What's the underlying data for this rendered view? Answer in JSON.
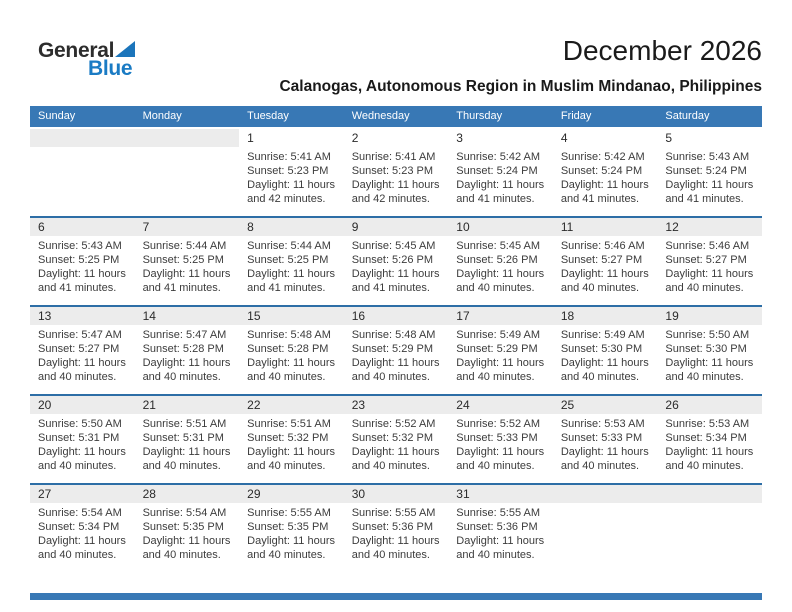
{
  "logo": {
    "word1": "General",
    "word2": "Blue",
    "word1_color": "#2d2d2d",
    "word2_color": "#1a7bc4",
    "triangle_icon": "blue-triangle",
    "triangle_color": "#1b75bb"
  },
  "header": {
    "title": "December 2026",
    "subtitle": "Calanogas, Autonomous Region in Muslim Mindanao, Philippines"
  },
  "colors": {
    "weekday_header_bg": "#3878b5",
    "weekday_header_text": "#ffffff",
    "week_divider": "#2d6ea6",
    "number_band": "#ececec",
    "detail_text": "#3c3c3c",
    "footer_bar": "#3878b5"
  },
  "calendar": {
    "day_headers": [
      "Sunday",
      "Monday",
      "Tuesday",
      "Wednesday",
      "Thursday",
      "Friday",
      "Saturday"
    ],
    "weeks": [
      {
        "days": [
          null,
          null,
          {
            "date": "1",
            "sunrise": "Sunrise: 5:41 AM",
            "sunset": "Sunset: 5:23 PM",
            "daylight_line1": "Daylight: 11 hours",
            "daylight_line2": "and 42 minutes."
          },
          {
            "date": "2",
            "sunrise": "Sunrise: 5:41 AM",
            "sunset": "Sunset: 5:23 PM",
            "daylight_line1": "Daylight: 11 hours",
            "daylight_line2": "and 42 minutes."
          },
          {
            "date": "3",
            "sunrise": "Sunrise: 5:42 AM",
            "sunset": "Sunset: 5:24 PM",
            "daylight_line1": "Daylight: 11 hours",
            "daylight_line2": "and 41 minutes."
          },
          {
            "date": "4",
            "sunrise": "Sunrise: 5:42 AM",
            "sunset": "Sunset: 5:24 PM",
            "daylight_line1": "Daylight: 11 hours",
            "daylight_line2": "and 41 minutes."
          },
          {
            "date": "5",
            "sunrise": "Sunrise: 5:43 AM",
            "sunset": "Sunset: 5:24 PM",
            "daylight_line1": "Daylight: 11 hours",
            "daylight_line2": "and 41 minutes."
          }
        ]
      },
      {
        "days": [
          {
            "date": "6",
            "sunrise": "Sunrise: 5:43 AM",
            "sunset": "Sunset: 5:25 PM",
            "daylight_line1": "Daylight: 11 hours",
            "daylight_line2": "and 41 minutes."
          },
          {
            "date": "7",
            "sunrise": "Sunrise: 5:44 AM",
            "sunset": "Sunset: 5:25 PM",
            "daylight_line1": "Daylight: 11 hours",
            "daylight_line2": "and 41 minutes."
          },
          {
            "date": "8",
            "sunrise": "Sunrise: 5:44 AM",
            "sunset": "Sunset: 5:25 PM",
            "daylight_line1": "Daylight: 11 hours",
            "daylight_line2": "and 41 minutes."
          },
          {
            "date": "9",
            "sunrise": "Sunrise: 5:45 AM",
            "sunset": "Sunset: 5:26 PM",
            "daylight_line1": "Daylight: 11 hours",
            "daylight_line2": "and 41 minutes."
          },
          {
            "date": "10",
            "sunrise": "Sunrise: 5:45 AM",
            "sunset": "Sunset: 5:26 PM",
            "daylight_line1": "Daylight: 11 hours",
            "daylight_line2": "and 40 minutes."
          },
          {
            "date": "11",
            "sunrise": "Sunrise: 5:46 AM",
            "sunset": "Sunset: 5:27 PM",
            "daylight_line1": "Daylight: 11 hours",
            "daylight_line2": "and 40 minutes."
          },
          {
            "date": "12",
            "sunrise": "Sunrise: 5:46 AM",
            "sunset": "Sunset: 5:27 PM",
            "daylight_line1": "Daylight: 11 hours",
            "daylight_line2": "and 40 minutes."
          }
        ]
      },
      {
        "days": [
          {
            "date": "13",
            "sunrise": "Sunrise: 5:47 AM",
            "sunset": "Sunset: 5:27 PM",
            "daylight_line1": "Daylight: 11 hours",
            "daylight_line2": "and 40 minutes."
          },
          {
            "date": "14",
            "sunrise": "Sunrise: 5:47 AM",
            "sunset": "Sunset: 5:28 PM",
            "daylight_line1": "Daylight: 11 hours",
            "daylight_line2": "and 40 minutes."
          },
          {
            "date": "15",
            "sunrise": "Sunrise: 5:48 AM",
            "sunset": "Sunset: 5:28 PM",
            "daylight_line1": "Daylight: 11 hours",
            "daylight_line2": "and 40 minutes."
          },
          {
            "date": "16",
            "sunrise": "Sunrise: 5:48 AM",
            "sunset": "Sunset: 5:29 PM",
            "daylight_line1": "Daylight: 11 hours",
            "daylight_line2": "and 40 minutes."
          },
          {
            "date": "17",
            "sunrise": "Sunrise: 5:49 AM",
            "sunset": "Sunset: 5:29 PM",
            "daylight_line1": "Daylight: 11 hours",
            "daylight_line2": "and 40 minutes."
          },
          {
            "date": "18",
            "sunrise": "Sunrise: 5:49 AM",
            "sunset": "Sunset: 5:30 PM",
            "daylight_line1": "Daylight: 11 hours",
            "daylight_line2": "and 40 minutes."
          },
          {
            "date": "19",
            "sunrise": "Sunrise: 5:50 AM",
            "sunset": "Sunset: 5:30 PM",
            "daylight_line1": "Daylight: 11 hours",
            "daylight_line2": "and 40 minutes."
          }
        ]
      },
      {
        "days": [
          {
            "date": "20",
            "sunrise": "Sunrise: 5:50 AM",
            "sunset": "Sunset: 5:31 PM",
            "daylight_line1": "Daylight: 11 hours",
            "daylight_line2": "and 40 minutes."
          },
          {
            "date": "21",
            "sunrise": "Sunrise: 5:51 AM",
            "sunset": "Sunset: 5:31 PM",
            "daylight_line1": "Daylight: 11 hours",
            "daylight_line2": "and 40 minutes."
          },
          {
            "date": "22",
            "sunrise": "Sunrise: 5:51 AM",
            "sunset": "Sunset: 5:32 PM",
            "daylight_line1": "Daylight: 11 hours",
            "daylight_line2": "and 40 minutes."
          },
          {
            "date": "23",
            "sunrise": "Sunrise: 5:52 AM",
            "sunset": "Sunset: 5:32 PM",
            "daylight_line1": "Daylight: 11 hours",
            "daylight_line2": "and 40 minutes."
          },
          {
            "date": "24",
            "sunrise": "Sunrise: 5:52 AM",
            "sunset": "Sunset: 5:33 PM",
            "daylight_line1": "Daylight: 11 hours",
            "daylight_line2": "and 40 minutes."
          },
          {
            "date": "25",
            "sunrise": "Sunrise: 5:53 AM",
            "sunset": "Sunset: 5:33 PM",
            "daylight_line1": "Daylight: 11 hours",
            "daylight_line2": "and 40 minutes."
          },
          {
            "date": "26",
            "sunrise": "Sunrise: 5:53 AM",
            "sunset": "Sunset: 5:34 PM",
            "daylight_line1": "Daylight: 11 hours",
            "daylight_line2": "and 40 minutes."
          }
        ]
      },
      {
        "days": [
          {
            "date": "27",
            "sunrise": "Sunrise: 5:54 AM",
            "sunset": "Sunset: 5:34 PM",
            "daylight_line1": "Daylight: 11 hours",
            "daylight_line2": "and 40 minutes."
          },
          {
            "date": "28",
            "sunrise": "Sunrise: 5:54 AM",
            "sunset": "Sunset: 5:35 PM",
            "daylight_line1": "Daylight: 11 hours",
            "daylight_line2": "and 40 minutes."
          },
          {
            "date": "29",
            "sunrise": "Sunrise: 5:55 AM",
            "sunset": "Sunset: 5:35 PM",
            "daylight_line1": "Daylight: 11 hours",
            "daylight_line2": "and 40 minutes."
          },
          {
            "date": "30",
            "sunrise": "Sunrise: 5:55 AM",
            "sunset": "Sunset: 5:36 PM",
            "daylight_line1": "Daylight: 11 hours",
            "daylight_line2": "and 40 minutes."
          },
          {
            "date": "31",
            "sunrise": "Sunrise: 5:55 AM",
            "sunset": "Sunset: 5:36 PM",
            "daylight_line1": "Daylight: 11 hours",
            "daylight_line2": "and 40 minutes."
          },
          null,
          null
        ]
      }
    ]
  }
}
